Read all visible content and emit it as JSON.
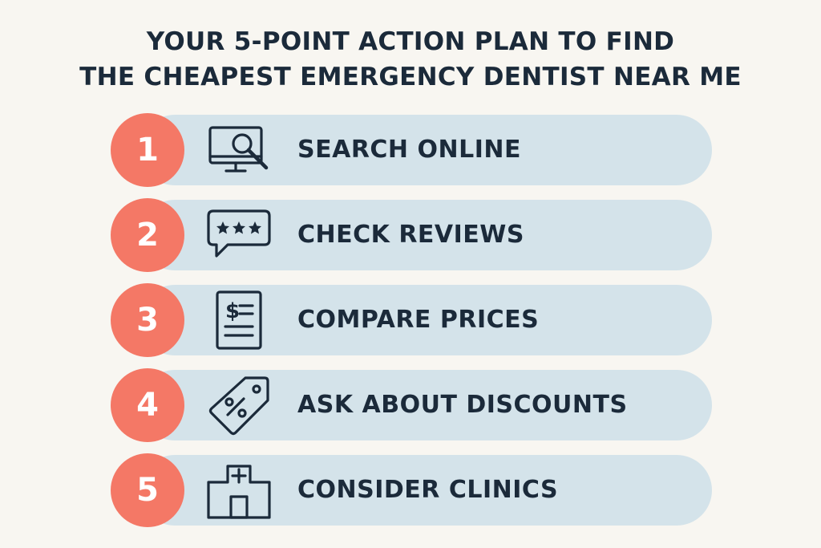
{
  "title": {
    "line1": "YOUR 5-POINT ACTION PLAN TO FIND",
    "line2": "THE CHEAPEST EMERGENCY DENTIST NEAR ME"
  },
  "colors": {
    "background": "#f8f6f1",
    "badge": "#f47866",
    "pill": "#d4e3ea",
    "text": "#1b2a3a"
  },
  "steps": [
    {
      "number": "1",
      "label": "SEARCH ONLINE",
      "icon": "monitor-search-icon"
    },
    {
      "number": "2",
      "label": "CHECK REVIEWS",
      "icon": "review-stars-icon"
    },
    {
      "number": "3",
      "label": "COMPARE PRICES",
      "icon": "price-list-icon"
    },
    {
      "number": "4",
      "label": "ASK ABOUT DISCOUNTS",
      "icon": "discount-tag-icon"
    },
    {
      "number": "5",
      "label": "CONSIDER CLINICS",
      "icon": "clinic-building-icon"
    }
  ]
}
